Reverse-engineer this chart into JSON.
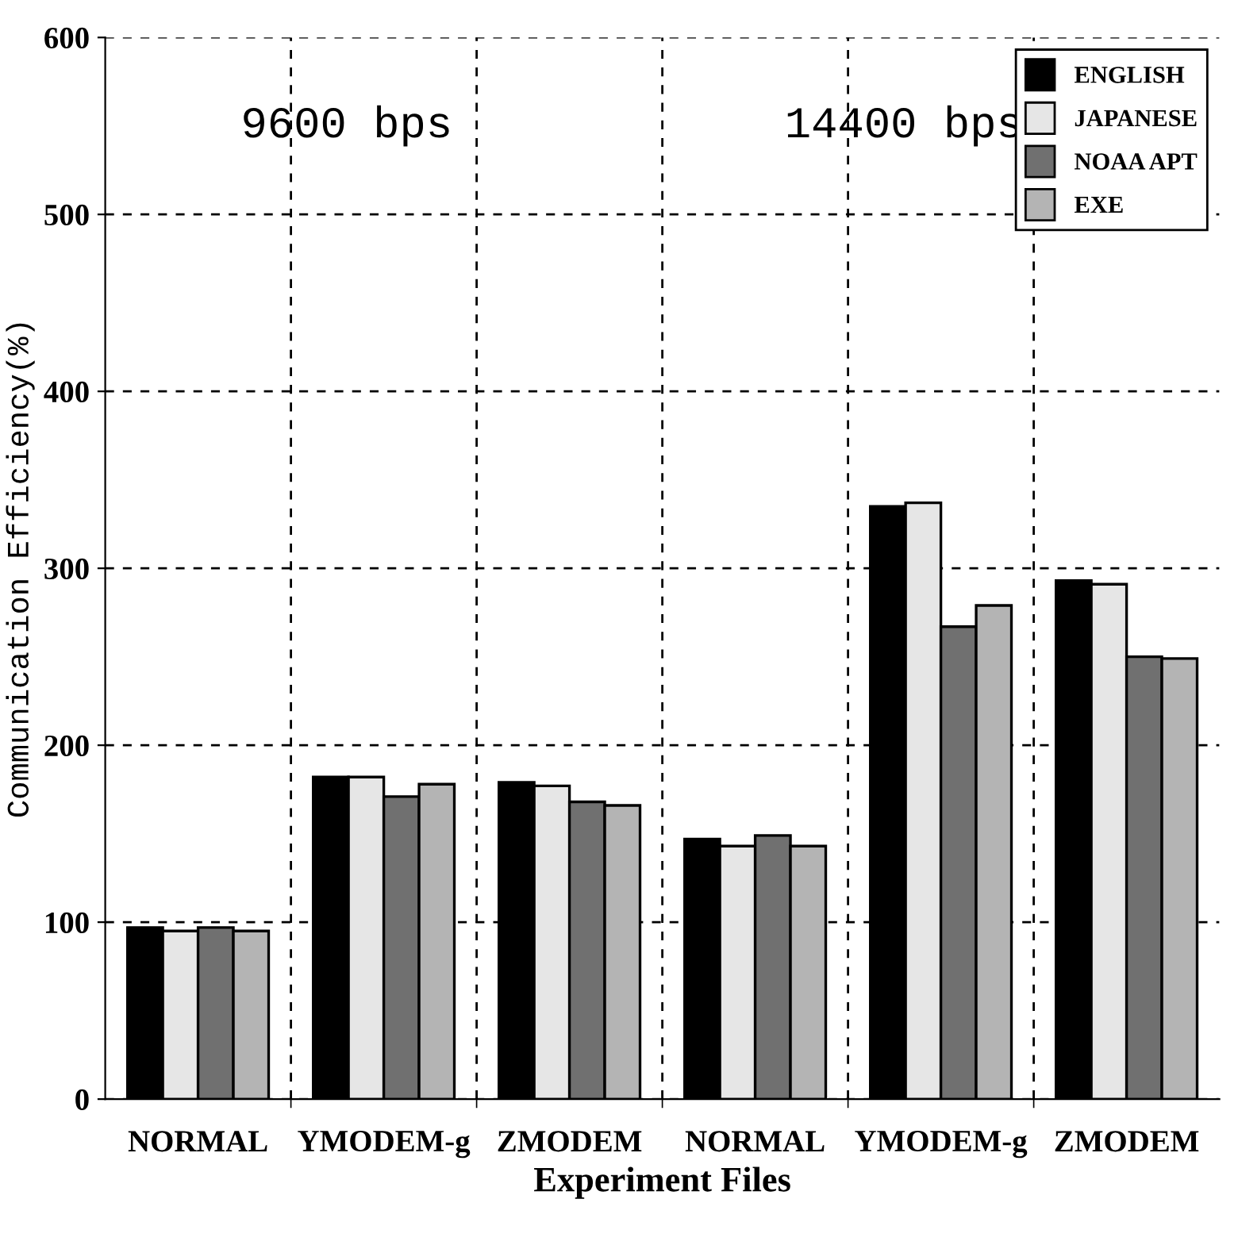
{
  "chart_data": {
    "type": "bar",
    "xlabel": "Experiment Files",
    "ylabel": "Communication Efficiency(%)",
    "categories": [
      "NORMAL",
      "YMODEM-g",
      "ZMODEM",
      "NORMAL",
      "YMODEM-g",
      "ZMODEM"
    ],
    "series": [
      {
        "name": "ENGLISH",
        "color": "#000000",
        "values": [
          97,
          182,
          179,
          147,
          335,
          293
        ]
      },
      {
        "name": "JAPANESE",
        "color": "#e6e6e6",
        "values": [
          95,
          182,
          177,
          143,
          337,
          291
        ]
      },
      {
        "name": "NOAA APT",
        "color": "#707070",
        "values": [
          97,
          171,
          168,
          149,
          267,
          250
        ]
      },
      {
        "name": "EXE",
        "color": "#b4b4b4",
        "values": [
          95,
          178,
          166,
          143,
          279,
          249
        ]
      }
    ],
    "annotations": [
      "9600 bps",
      "14400 bps"
    ],
    "ylim": [
      0,
      600
    ],
    "yticks": [
      0,
      100,
      200,
      300,
      400,
      500,
      600
    ],
    "grid": true,
    "legend": "top right"
  }
}
